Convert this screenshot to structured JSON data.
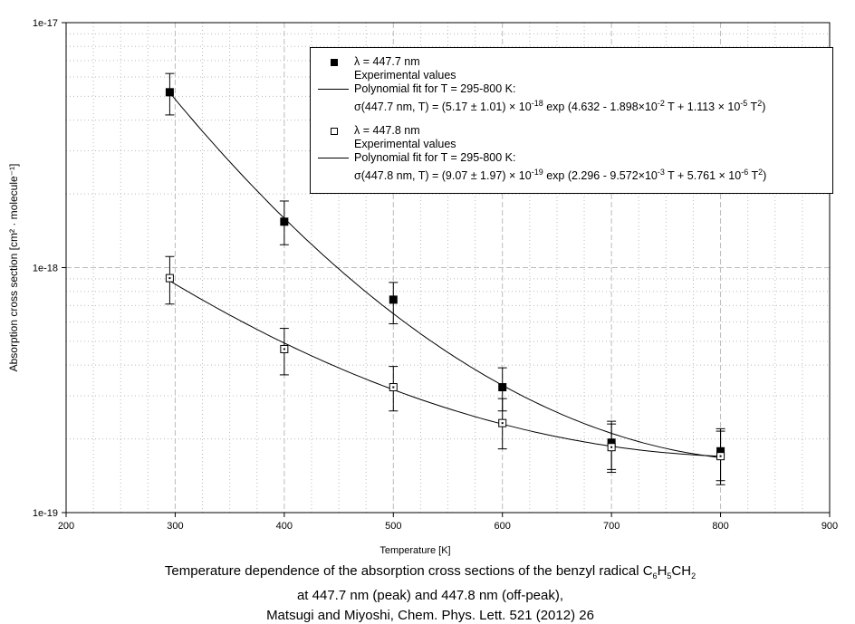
{
  "chart_data": {
    "type": "scatter",
    "xlabel": "Temperature [K]",
    "ylabel": "Absorption cross section [cm² · molecule⁻¹]",
    "xlim": [
      200,
      900
    ],
    "ylim": [
      1e-19,
      1e-17
    ],
    "yscale": "log",
    "grid": true,
    "legend_position": "top-right",
    "x_ticks": [
      "200",
      "300",
      "400",
      "500",
      "600",
      "700",
      "800",
      "900"
    ],
    "y_ticks": [
      "1e-19",
      "1e-18",
      "1e-17"
    ],
    "series": [
      {
        "name": "λ = 447.7 nm",
        "subtitle": "Experimental values",
        "marker": "filled-square",
        "x": [
          295,
          400,
          500,
          600,
          700,
          800
        ],
        "y": [
          5.2e-18,
          1.54e-18,
          7.4e-19,
          3.25e-19,
          1.93e-19,
          1.78e-19
        ],
        "err_low": [
          4.2e-18,
          1.24e-18,
          5.9e-19,
          2.6e-19,
          1.5e-19,
          1.35e-19
        ],
        "err_high": [
          6.2e-18,
          1.87e-18,
          8.7e-19,
          3.9e-19,
          2.36e-19,
          2.2e-19
        ]
      },
      {
        "name": "λ = 447.8 nm",
        "subtitle": "Experimental values",
        "marker": "open-square",
        "x": [
          295,
          400,
          500,
          600,
          700,
          800
        ],
        "y": [
          9.06e-19,
          4.65e-19,
          3.25e-19,
          2.32e-19,
          1.85e-19,
          1.7e-19
        ],
        "err_low": [
          7.1e-19,
          3.65e-19,
          2.6e-19,
          1.82e-19,
          1.46e-19,
          1.3e-19
        ],
        "err_high": [
          1.11e-18,
          5.65e-19,
          3.95e-19,
          2.92e-19,
          2.3e-19,
          2.15e-19
        ]
      }
    ],
    "fits": [
      {
        "label": "Polynomial fit for T = 295-800 K:",
        "prefactor": 5.17e-18,
        "a": 4.632,
        "b": -0.01898,
        "c": 1.113e-05,
        "range": [
          295,
          800
        ],
        "eq": {
          "pre": "σ(447.7 nm, T) = (5.17 ± 1.01) × 10",
          "e1": "-18",
          "mid": " exp (4.632 - 1.898×10",
          "e2": "-2",
          "mid2": " T + 1.113 × 10",
          "e3": "-5",
          "end": " T",
          "e4": "2",
          "close": ")"
        }
      },
      {
        "label": "Polynomial fit for T = 295-800 K:",
        "prefactor": 9.07e-19,
        "a": 2.296,
        "b": -0.009572,
        "c": 5.761e-06,
        "range": [
          295,
          800
        ],
        "eq": {
          "pre": "σ(447.8 nm, T) = (9.07 ± 1.97) × 10",
          "e1": "-19",
          "mid": " exp (2.296 - 9.572×10",
          "e2": "-3",
          "mid2": " T + 5.761 × 10",
          "e3": "-6",
          "end": " T",
          "e4": "2",
          "close": ")"
        }
      }
    ],
    "caption": {
      "line1": "Temperature dependence of the absorption cross sections of the benzyl radical C",
      "s1": "6",
      "h": "H",
      "s2": "5",
      "ch": "CH",
      "s3": "2",
      "line2": "at 447.7 nm (peak) and 447.8 nm (off-peak),",
      "line3": "Matsugi and Miyoshi, Chem. Phys. Lett. 521 (2012) 26"
    }
  }
}
